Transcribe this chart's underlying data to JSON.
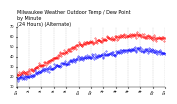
{
  "title": "Milwaukee Weather Outdoor Temp / Dew Point\nby Minute\n(24 Hours) (Alternate)",
  "title_fontsize": 3.5,
  "background_color": "#ffffff",
  "plot_bg_color": "#ffffff",
  "grid_color": "#bbbbbb",
  "temp_color": "#ff0000",
  "dew_color": "#0000ff",
  "ylim": [
    10,
    70
  ],
  "xlim": [
    0,
    1440
  ],
  "yticks": [
    10,
    20,
    30,
    40,
    50,
    60,
    70
  ],
  "ytick_labels": [
    "10",
    "20",
    "30",
    "40",
    "50",
    "60",
    "70"
  ],
  "ytick_fontsize": 2.5,
  "xtick_fontsize": 2.0,
  "n_points": 1440,
  "seed": 42
}
